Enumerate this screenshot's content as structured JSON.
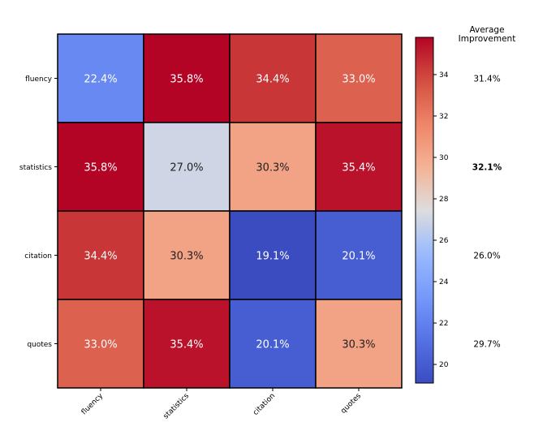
{
  "chart_data": {
    "type": "heatmap",
    "row_labels": [
      "fluency",
      "statistics",
      "citation",
      "quotes"
    ],
    "col_labels": [
      "fluency",
      "statistics",
      "citation",
      "quotes"
    ],
    "cell_labels": [
      [
        "22.4%",
        "35.8%",
        "34.4%",
        "33.0%"
      ],
      [
        "35.8%",
        "27.0%",
        "30.3%",
        "35.4%"
      ],
      [
        "34.4%",
        "30.3%",
        "19.1%",
        "20.1%"
      ],
      [
        "33.0%",
        "35.4%",
        "20.1%",
        "30.3%"
      ]
    ],
    "values": [
      [
        22.4,
        35.8,
        34.4,
        33.0
      ],
      [
        35.8,
        27.0,
        30.3,
        35.4
      ],
      [
        34.4,
        30.3,
        19.1,
        20.1
      ],
      [
        33.0,
        35.4,
        20.1,
        30.3
      ]
    ],
    "colorbar": {
      "colormap": "coolwarm",
      "vmin": 19.1,
      "vmax": 35.8,
      "ticks": [
        20,
        22,
        24,
        26,
        28,
        30,
        32,
        34
      ],
      "tick_labels": [
        "20",
        "22",
        "24",
        "26",
        "28",
        "30",
        "32",
        "34"
      ]
    },
    "side_title_line1": "Average",
    "side_title_line2": "Improvement",
    "averages": [
      "31.4%",
      "32.1%",
      "26.0%",
      "29.7%"
    ],
    "average_values": [
      31.4,
      32.1,
      26.0,
      29.7
    ],
    "highlighted_average": "32.1%",
    "colors": {
      "cool_end": "#3b4cc0",
      "neutral": "#dddddd",
      "warm_end": "#b40426",
      "border": "#000000"
    }
  }
}
